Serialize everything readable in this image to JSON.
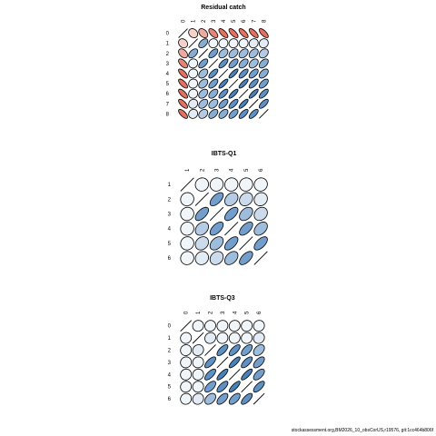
{
  "footer": {
    "credit": "stockassessment.org,BM2026_10_obsCorUS,r19576, git:1cc464b806f"
  },
  "chart_data": [
    {
      "type": "heatmap",
      "title": "Residual catch",
      "labels": [
        "0",
        "1",
        "2",
        "3",
        "4",
        "5",
        "6",
        "7",
        "8"
      ],
      "matrix": [
        [
          1.0,
          -0.2,
          -0.4,
          -0.6,
          -0.7,
          -0.7,
          -0.7,
          -0.7,
          -0.7
        ],
        [
          -0.2,
          1.0,
          0.5,
          0.05,
          0.05,
          0.05,
          0.05,
          0.1,
          0.1
        ],
        [
          -0.4,
          0.5,
          1.0,
          0.6,
          0.4,
          0.4,
          0.4,
          0.4,
          0.3
        ],
        [
          -0.6,
          0.05,
          0.6,
          1.0,
          0.7,
          0.6,
          0.5,
          0.4,
          0.5
        ],
        [
          -0.7,
          0.05,
          0.4,
          0.7,
          1.0,
          0.8,
          0.7,
          0.6,
          0.5
        ],
        [
          -0.7,
          0.05,
          0.4,
          0.6,
          0.8,
          1.0,
          0.8,
          0.7,
          0.6
        ],
        [
          -0.7,
          0.05,
          0.4,
          0.5,
          0.7,
          0.8,
          1.0,
          0.8,
          0.7
        ],
        [
          -0.7,
          0.1,
          0.4,
          0.4,
          0.6,
          0.7,
          0.8,
          1.0,
          0.7
        ],
        [
          -0.7,
          0.1,
          0.3,
          0.5,
          0.5,
          0.6,
          0.7,
          0.7,
          1.0
        ]
      ]
    },
    {
      "type": "heatmap",
      "title": "IBTS-Q1",
      "labels": [
        "1",
        "2",
        "3",
        "4",
        "5",
        "6"
      ],
      "matrix": [
        [
          1.0,
          0.05,
          0.05,
          0.05,
          0.05,
          0.05
        ],
        [
          0.05,
          1.0,
          0.6,
          0.3,
          0.2,
          0.1
        ],
        [
          0.05,
          0.6,
          1.0,
          0.6,
          0.4,
          0.2
        ],
        [
          0.05,
          0.3,
          0.6,
          1.0,
          0.6,
          0.4
        ],
        [
          0.05,
          0.2,
          0.4,
          0.6,
          1.0,
          0.6
        ],
        [
          0.05,
          0.1,
          0.2,
          0.4,
          0.6,
          1.0
        ]
      ]
    },
    {
      "type": "heatmap",
      "title": "IBTS-Q3",
      "labels": [
        "0",
        "1",
        "2",
        "3",
        "4",
        "5",
        "6"
      ],
      "matrix": [
        [
          1.0,
          0.05,
          0.05,
          0.05,
          0.05,
          0.05,
          0.05
        ],
        [
          0.05,
          1.0,
          0.1,
          0.05,
          0.05,
          0.05,
          0.1
        ],
        [
          0.05,
          0.1,
          1.0,
          0.7,
          0.7,
          0.6,
          0.4
        ],
        [
          0.05,
          0.05,
          0.7,
          1.0,
          0.8,
          0.7,
          0.6
        ],
        [
          0.05,
          0.05,
          0.7,
          0.8,
          1.0,
          0.8,
          0.6
        ],
        [
          0.05,
          0.05,
          0.6,
          0.7,
          0.8,
          1.0,
          0.7
        ],
        [
          0.05,
          0.1,
          0.4,
          0.6,
          0.6,
          0.7,
          1.0
        ]
      ]
    }
  ]
}
